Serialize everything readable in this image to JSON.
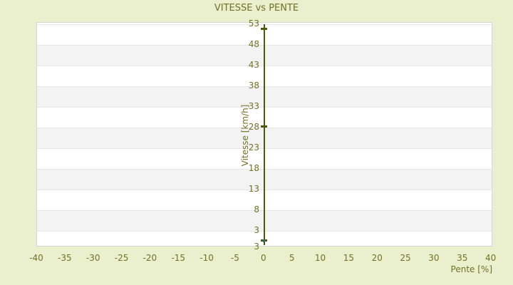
{
  "page": {
    "background_color": "#eaf0cd"
  },
  "chart_data": {
    "type": "scatter",
    "title": "VITESSE vs PENTE",
    "xlabel": "Pente [%]",
    "ylabel": "Vitesse [km/h]",
    "xlim": [
      -40,
      40.3
    ],
    "ylim": [
      -1,
      53.35
    ],
    "x_ticks": [
      -40,
      -35,
      -30,
      -25,
      -20,
      -15,
      -10,
      -5,
      0,
      5,
      10,
      15,
      20,
      25,
      30,
      35,
      40
    ],
    "y_ticks": [
      53,
      48,
      43,
      38,
      33,
      28,
      23,
      18,
      13,
      8,
      3
    ],
    "y_axis_min_label": "3",
    "legend": "none",
    "grid": {
      "alternating_bands": true,
      "horizontal_gridlines_every": 5
    },
    "series": [
      {
        "name": "vitesse",
        "style": "vertical-line-with-dash-markers",
        "line": {
          "x": 0,
          "y_top": 53,
          "y_bottom": -0.5
        },
        "points": [
          {
            "x": 0,
            "y": 51.8
          },
          {
            "x": 0,
            "y": 28.2
          },
          {
            "x": 0,
            "y": 0.6,
            "center_highlight": true
          }
        ]
      }
    ],
    "colors": {
      "background": "#eaf0cd",
      "text": "#6d7325",
      "line": "#4d5a0d",
      "marker": "#4d5a0d",
      "marker_highlight": "#35677a",
      "plot_background": "#ffffff",
      "band": "#f3f3f3",
      "gridline": "#e6e6e6",
      "plot_border": "#d6d6d6"
    }
  }
}
